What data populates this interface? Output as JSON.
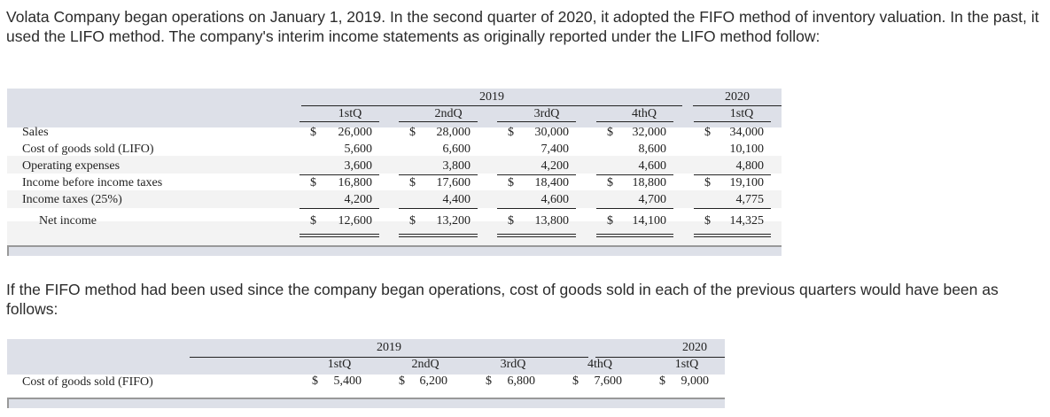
{
  "intro": "Volata Company began operations on January 1, 2019. In the second quarter of 2020, it adopted the FIFO method of inventory valuation. In the past, it used the LIFO method. The company's interim income statements as originally reported under the LIFO method follow:",
  "table1": {
    "years": [
      "2019",
      "2020"
    ],
    "quarters": [
      "1stQ",
      "2ndQ",
      "3rdQ",
      "4thQ",
      "1stQ"
    ],
    "rows": [
      {
        "label": "Sales",
        "dollar": true,
        "values": [
          "26,000",
          "28,000",
          "30,000",
          "32,000",
          "34,000"
        ]
      },
      {
        "label": "Cost of goods sold (LIFO)",
        "dollar": false,
        "values": [
          "5,600",
          "6,600",
          "7,400",
          "8,600",
          "10,100"
        ]
      },
      {
        "label": "Operating expenses",
        "dollar": false,
        "values": [
          "3,600",
          "3,800",
          "4,200",
          "4,600",
          "4,800"
        ]
      },
      {
        "label": "Income before income taxes",
        "dollar": true,
        "values": [
          "16,800",
          "17,600",
          "18,400",
          "18,800",
          "19,100"
        ]
      },
      {
        "label": "Income taxes (25%)",
        "dollar": false,
        "values": [
          "4,200",
          "4,400",
          "4,600",
          "4,700",
          "4,775"
        ]
      },
      {
        "label": "Net income",
        "dollar": true,
        "values": [
          "12,600",
          "13,200",
          "13,800",
          "14,100",
          "14,325"
        ]
      }
    ]
  },
  "middle": "If the FIFO method had been used since the company began operations, cost of goods sold in each of the previous quarters would have been as follows:",
  "table2": {
    "years": [
      "2019",
      "2020"
    ],
    "quarters": [
      "1stQ",
      "2ndQ",
      "3rdQ",
      "4thQ",
      "1stQ"
    ],
    "row": {
      "label": "Cost of goods sold (FIFO)",
      "values": [
        "5,400",
        "6,200",
        "6,800",
        "7,600",
        "9,000"
      ]
    }
  },
  "currency": "$"
}
